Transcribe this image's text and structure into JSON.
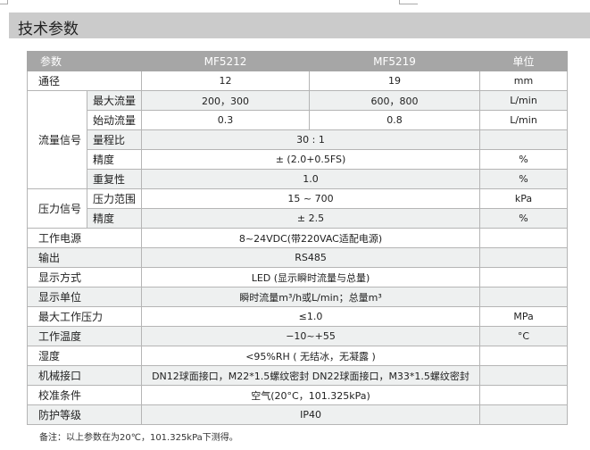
{
  "title": "技术参数",
  "header": {
    "param": "参数",
    "model1": "MF5212",
    "model2": "MF5219",
    "unit": "单位"
  },
  "rows": [
    {
      "label": "通径",
      "v1": "12",
      "v2": "19",
      "unit": "mm"
    },
    {
      "group": "流量信号",
      "label": "最大流量",
      "v1": "200，300",
      "v2": "600，800",
      "unit": "L/min"
    },
    {
      "label": "始动流量",
      "v1": "0.3",
      "v2": "0.8",
      "unit": "L/min"
    },
    {
      "label": "量程比",
      "v": "30 : 1",
      "unit": ""
    },
    {
      "label": "精度",
      "v": "± (2.0+0.5FS)",
      "unit": "%"
    },
    {
      "label": "重复性",
      "v": "1.0",
      "unit": "%"
    },
    {
      "group": "压力信号",
      "label": "压力范围",
      "v": "15 ~ 700",
      "unit": "kPa"
    },
    {
      "label": "精度",
      "v": "± 2.5",
      "unit": "%"
    },
    {
      "label": "工作电源",
      "v": "8~24VDC(带220VAC适配电源)",
      "unit": ""
    },
    {
      "label": "输出",
      "v": "RS485",
      "unit": ""
    },
    {
      "label": "显示方式",
      "v": "LED (显示瞬时流量与总量)",
      "unit": ""
    },
    {
      "label": "显示单位",
      "v": "瞬时流量m³/h或L/min；总量m³",
      "unit": ""
    },
    {
      "label": "最大工作压力",
      "v": "≤1.0",
      "unit": "MPa"
    },
    {
      "label": "工作温度",
      "v": "−10~+55",
      "unit": "°C"
    },
    {
      "label": "湿度",
      "v": "<95%RH ( 无结冰，无凝露 )",
      "unit": ""
    },
    {
      "label": "机械接口",
      "v": "DN12球面接口，M22*1.5螺纹密封  DN22球面接口，M33*1.5螺纹密封",
      "unit": ""
    },
    {
      "label": "校准条件",
      "v": "空气(20°C，101.325kPa)",
      "unit": ""
    },
    {
      "label": "防护等级",
      "v": "IP40",
      "unit": ""
    }
  ],
  "note": "备注：以上参数在为20℃，101.325kPa下测得。"
}
